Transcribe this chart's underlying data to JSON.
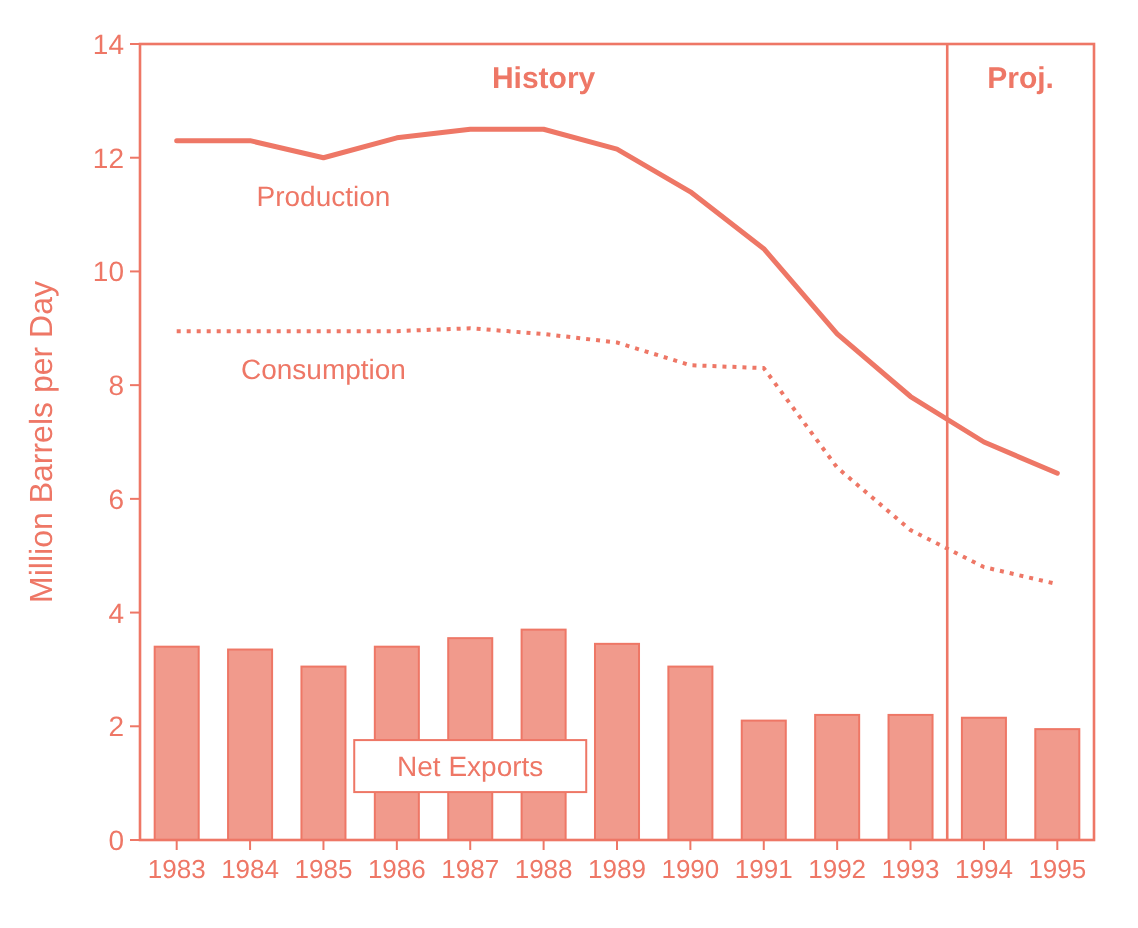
{
  "chart_data": {
    "type": "bar",
    "ylabel": "Million Barrels per Day",
    "x": [
      1983,
      1984,
      1985,
      1986,
      1987,
      1988,
      1989,
      1990,
      1991,
      1992,
      1993,
      1994,
      1995
    ],
    "xlim": [
      1982.5,
      1995.5
    ],
    "xticks": [
      1983,
      1984,
      1985,
      1986,
      1987,
      1988,
      1989,
      1990,
      1991,
      1992,
      1993,
      1994,
      1995
    ],
    "ylim": [
      0,
      14
    ],
    "yticks": [
      0,
      2,
      4,
      6,
      8,
      10,
      12,
      14
    ],
    "series": [
      {
        "name": "Net Exports",
        "color": "#f19a8c",
        "values": [
          3.4,
          3.35,
          3.05,
          3.4,
          3.55,
          3.7,
          3.45,
          3.05,
          2.1,
          2.2,
          2.2,
          2.15,
          1.95
        ]
      },
      {
        "name": "Production",
        "type": "line",
        "color": "#ee7766",
        "line_style": "solid",
        "values": [
          12.3,
          12.3,
          12.0,
          12.35,
          12.5,
          12.5,
          12.15,
          11.4,
          10.4,
          8.9,
          7.8,
          7.0,
          6.45
        ]
      },
      {
        "name": "Consumption",
        "type": "line",
        "color": "#ee7766",
        "line_style": "dotted",
        "values": [
          8.95,
          8.95,
          8.95,
          8.95,
          9.0,
          8.9,
          8.75,
          8.35,
          8.3,
          6.55,
          5.45,
          4.8,
          4.5
        ]
      }
    ],
    "ref_lines": [
      {
        "axis": "x",
        "value": 1993.5,
        "color": "#ee7766"
      }
    ],
    "annotations": [
      "History",
      "Proj."
    ]
  }
}
